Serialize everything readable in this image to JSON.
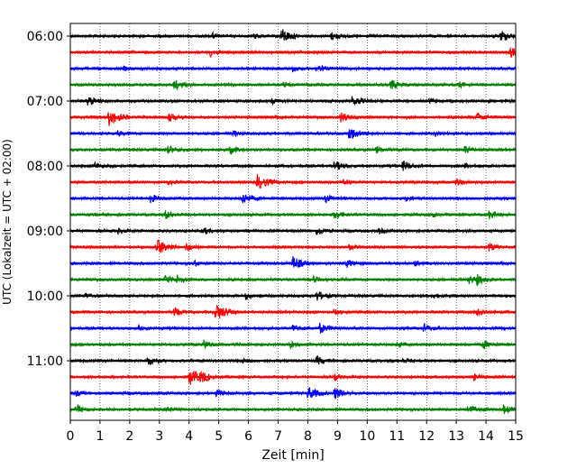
{
  "chart_data": {
    "type": "line",
    "title": "",
    "xlabel": "Zeit  [min]",
    "ylabel": "UTC (Lokalzeit = UTC + 02:00)",
    "xlim": [
      0,
      15
    ],
    "xticks": [
      0,
      1,
      2,
      3,
      4,
      5,
      6,
      7,
      8,
      9,
      10,
      11,
      12,
      13,
      14,
      15
    ],
    "ylim_trace": [
      0,
      24
    ],
    "ytick_labels": [
      "06:00",
      "07:00",
      "08:00",
      "09:00",
      "10:00",
      "11:00"
    ],
    "ytick_trace_index": [
      0,
      4,
      8,
      12,
      16,
      20
    ],
    "grid": "vertical dotted at each minute",
    "trace_interval_minutes": 15,
    "trace_colors": [
      "#000000",
      "#ff0000",
      "#0000ff",
      "#008000"
    ],
    "series": [
      {
        "start": "06:00",
        "events": [
          [
            4.8,
            0.3
          ],
          [
            6.2,
            0.3
          ],
          [
            7.1,
            0.9
          ],
          [
            8.8,
            0.5
          ],
          [
            14.5,
            0.7
          ]
        ]
      },
      {
        "start": "06:15",
        "events": [
          [
            4.7,
            0.5
          ],
          [
            14.8,
            0.7
          ]
        ]
      },
      {
        "start": "06:30",
        "events": [
          [
            1.8,
            0.2
          ],
          [
            7.5,
            0.35
          ],
          [
            8.3,
            0.5
          ]
        ]
      },
      {
        "start": "06:45",
        "events": [
          [
            3.5,
            0.6
          ],
          [
            7.2,
            0.3
          ],
          [
            10.8,
            0.6
          ],
          [
            13.1,
            0.3
          ]
        ]
      },
      {
        "start": "07:00",
        "events": [
          [
            0.6,
            0.6
          ],
          [
            6.8,
            0.3
          ],
          [
            9.5,
            0.6
          ],
          [
            12.1,
            0.3
          ]
        ]
      },
      {
        "start": "07:15",
        "events": [
          [
            1.3,
            1.0
          ],
          [
            3.3,
            0.5
          ],
          [
            9.1,
            0.6
          ],
          [
            13.7,
            0.5
          ]
        ]
      },
      {
        "start": "07:30",
        "events": [
          [
            1.6,
            0.3
          ],
          [
            5.5,
            0.3
          ],
          [
            9.4,
            0.8
          ],
          [
            12.3,
            0.3
          ]
        ]
      },
      {
        "start": "07:45",
        "events": [
          [
            3.3,
            0.5
          ],
          [
            5.4,
            0.5
          ],
          [
            10.3,
            0.35
          ],
          [
            13.3,
            0.5
          ]
        ]
      },
      {
        "start": "08:00",
        "events": [
          [
            0.8,
            0.4
          ],
          [
            8.9,
            0.6
          ],
          [
            11.2,
            0.6
          ],
          [
            13.3,
            0.3
          ]
        ]
      },
      {
        "start": "08:15",
        "events": [
          [
            3.3,
            0.3
          ],
          [
            6.3,
            0.9
          ],
          [
            9.2,
            0.35
          ],
          [
            13.0,
            0.4
          ]
        ]
      },
      {
        "start": "08:30",
        "events": [
          [
            2.7,
            0.5
          ],
          [
            5.8,
            0.7
          ],
          [
            8.6,
            0.5
          ],
          [
            11.3,
            0.3
          ]
        ]
      },
      {
        "start": "08:45",
        "events": [
          [
            3.2,
            0.5
          ],
          [
            8.9,
            0.5
          ],
          [
            12.2,
            0.3
          ],
          [
            14.1,
            0.5
          ]
        ]
      },
      {
        "start": "09:00",
        "events": [
          [
            1.6,
            0.3
          ],
          [
            4.5,
            0.4
          ],
          [
            8.3,
            0.5
          ],
          [
            10.4,
            0.3
          ]
        ]
      },
      {
        "start": "09:15",
        "events": [
          [
            2.9,
            1.0
          ],
          [
            3.9,
            0.5
          ],
          [
            9.4,
            0.3
          ],
          [
            14.1,
            0.5
          ]
        ]
      },
      {
        "start": "09:30",
        "events": [
          [
            4.2,
            0.3
          ],
          [
            7.5,
            0.8
          ],
          [
            9.3,
            0.5
          ],
          [
            11.6,
            0.3
          ]
        ]
      },
      {
        "start": "09:45",
        "events": [
          [
            3.2,
            0.5
          ],
          [
            3.6,
            0.5
          ],
          [
            8.2,
            0.35
          ],
          [
            13.4,
            0.5
          ],
          [
            13.7,
            0.5
          ]
        ]
      },
      {
        "start": "10:00",
        "events": [
          [
            0.5,
            0.3
          ],
          [
            5.9,
            0.4
          ],
          [
            8.3,
            0.6
          ],
          [
            12.2,
            0.35
          ]
        ]
      },
      {
        "start": "10:15",
        "events": [
          [
            3.5,
            0.5
          ],
          [
            4.9,
            1.0
          ],
          [
            8.9,
            0.3
          ],
          [
            13.7,
            0.5
          ]
        ]
      },
      {
        "start": "10:30",
        "events": [
          [
            2.3,
            0.3
          ],
          [
            7.5,
            0.5
          ],
          [
            8.4,
            0.6
          ],
          [
            11.9,
            0.5
          ]
        ]
      },
      {
        "start": "10:45",
        "events": [
          [
            4.5,
            0.5
          ],
          [
            7.4,
            0.35
          ],
          [
            11.0,
            0.3
          ],
          [
            13.9,
            0.5
          ]
        ]
      },
      {
        "start": "11:00",
        "events": [
          [
            2.6,
            0.5
          ],
          [
            5.8,
            0.3
          ],
          [
            8.3,
            0.5
          ],
          [
            11.2,
            0.3
          ]
        ]
      },
      {
        "start": "11:15",
        "events": [
          [
            4.0,
            1.0
          ],
          [
            4.4,
            0.5
          ],
          [
            8.9,
            0.4
          ],
          [
            13.6,
            0.35
          ]
        ]
      },
      {
        "start": "11:30",
        "events": [
          [
            0.2,
            0.3
          ],
          [
            4.9,
            0.4
          ],
          [
            8.0,
            0.8
          ],
          [
            8.9,
            0.7
          ]
        ]
      },
      {
        "start": "11:45",
        "events": [
          [
            0.2,
            0.5
          ],
          [
            3.2,
            0.5
          ],
          [
            13.4,
            0.6
          ],
          [
            14.6,
            0.5
          ]
        ]
      }
    ]
  }
}
